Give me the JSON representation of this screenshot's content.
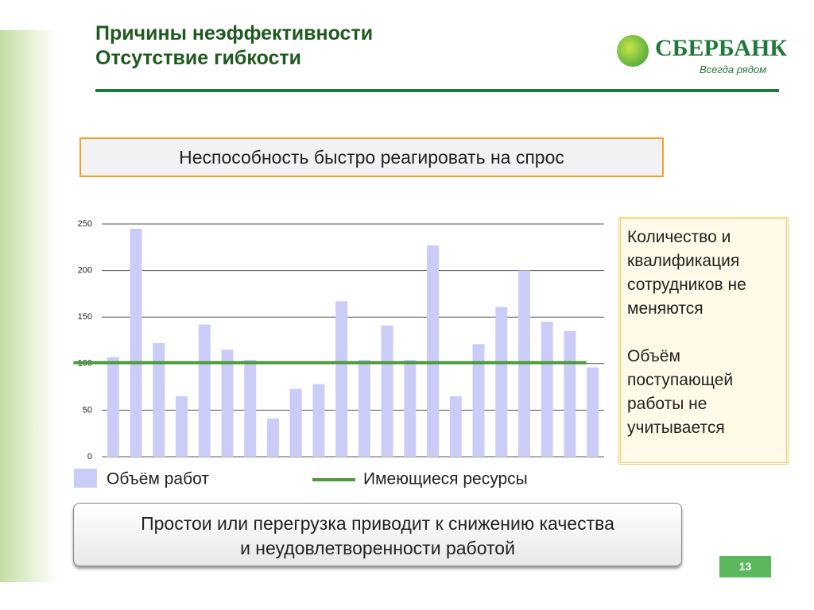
{
  "header": {
    "title": "Причины неэффективности",
    "subtitle": "Отсутствие гибкости",
    "logo": "СБЕРБАНК",
    "slogan": "Всегда рядом"
  },
  "problem": "Неспособность быстро реагировать на спрос",
  "notes": [
    "Количество и квалификация сотрудников не меняются",
    "Объём поступающей работы не учитывается"
  ],
  "conclusion": [
    "Простои или перегрузка приводит к снижению качества",
    "и неудовлетворенности работой"
  ],
  "page_number": "13",
  "chart_data": {
    "type": "combo",
    "categories": [
      null,
      null,
      null,
      null,
      null,
      null,
      null,
      null,
      null,
      null,
      null,
      null,
      null,
      null,
      null,
      null,
      null,
      null,
      null,
      null,
      null,
      null
    ],
    "series": [
      {
        "name": "Объём работ",
        "type": "bar",
        "color": "#ccccf8",
        "values": [
          107,
          245,
          122,
          65,
          142,
          115,
          104,
          41,
          73,
          78,
          167,
          104,
          141,
          104,
          227,
          65,
          121,
          161,
          200,
          145,
          135,
          96
        ]
      },
      {
        "name": "Имеющиеся ресурсы",
        "type": "line",
        "color": "#4c9a3c",
        "values": [
          101,
          101,
          101,
          101,
          101,
          101,
          101,
          101,
          101,
          101,
          101,
          101,
          101,
          101,
          101,
          101,
          101,
          101,
          101,
          101,
          101,
          101
        ]
      }
    ],
    "ylim": [
      0,
      250
    ],
    "yticks": [
      0,
      50,
      100,
      150,
      200,
      250
    ],
    "grid": true
  }
}
